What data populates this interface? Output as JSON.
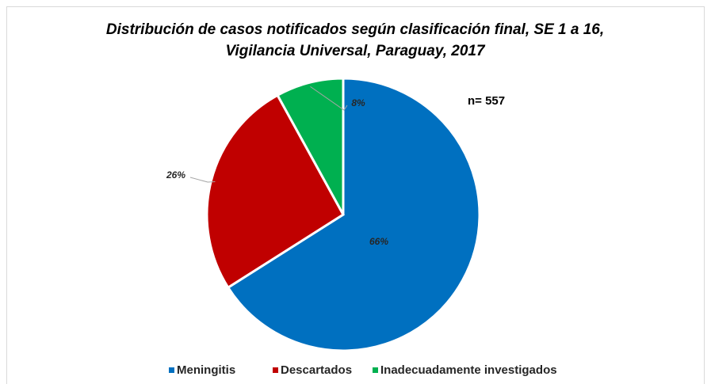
{
  "chart_data": {
    "type": "pie",
    "title": [
      "Distribución de casos notificados según clasificación final, SE 1 a 16,",
      "Vigilancia Universal, Paraguay, 2017"
    ],
    "annotation": "n= 557",
    "categories": [
      "Meningitis",
      "Descartados",
      "Inadecuadamente investigados"
    ],
    "values": [
      66,
      26,
      8
    ],
    "value_labels": [
      "66%",
      "26%",
      "8%"
    ],
    "colors": [
      "#0070c0",
      "#c00000",
      "#00b050"
    ],
    "legend": "bottom"
  }
}
